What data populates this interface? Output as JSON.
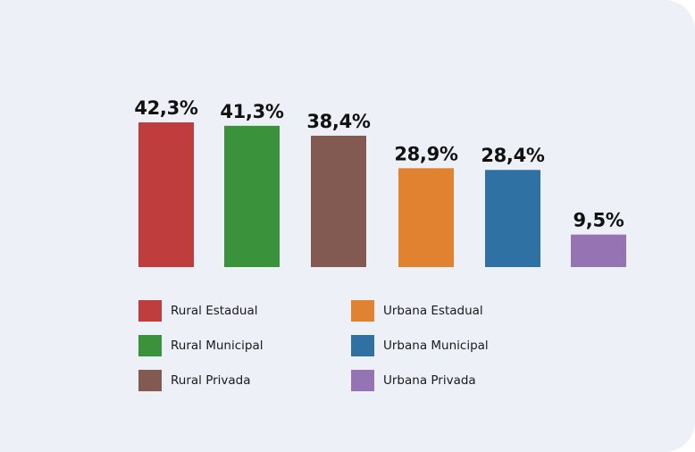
{
  "chart_data": {
    "type": "bar",
    "categories": [
      "Rural Estadual",
      "Rural Municipal",
      "Rural Privada",
      "Urbana Estadual",
      "Urbana Municipal",
      "Urbana Privada"
    ],
    "values": [
      42.3,
      41.3,
      38.4,
      28.9,
      28.4,
      9.5
    ],
    "value_labels": [
      "42,3%",
      "41,3%",
      "38,4%",
      "28,9%",
      "28,4%",
      "9,5%"
    ],
    "colors": [
      "#bf3d3d",
      "#3a923a",
      "#825a52",
      "#e0822f",
      "#2f71a2",
      "#9673b3"
    ],
    "unit": "%",
    "ylim": [
      0,
      42.3
    ],
    "grid": false,
    "legend_position": "bottom"
  },
  "legend": [
    {
      "label": "Rural Estadual",
      "color": "#bf3d3d"
    },
    {
      "label": "Rural Municipal",
      "color": "#3a923a"
    },
    {
      "label": "Rural Privada",
      "color": "#825a52"
    },
    {
      "label": "Urbana Estadual",
      "color": "#e0822f"
    },
    {
      "label": "Urbana Municipal",
      "color": "#2f71a2"
    },
    {
      "label": "Urbana Privada",
      "color": "#9673b3"
    }
  ]
}
